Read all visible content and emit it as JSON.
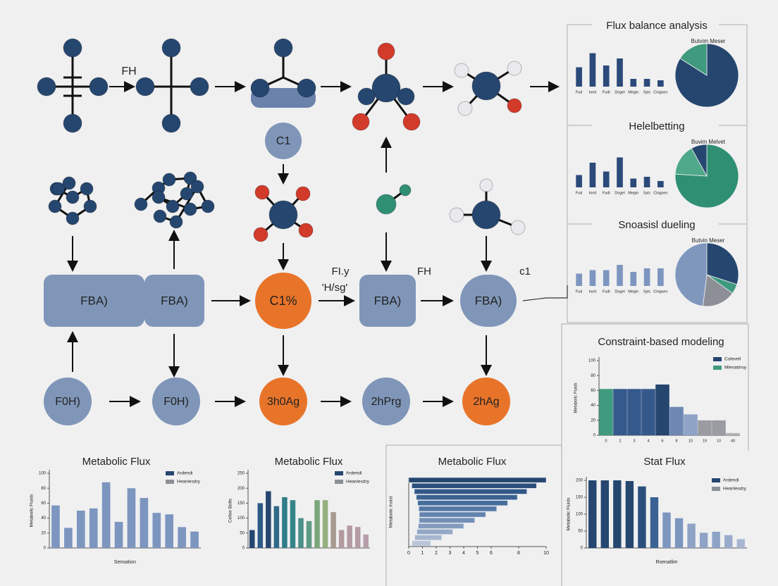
{
  "top_labels": [
    "FH",
    "C1"
  ],
  "nodes": {
    "fba": [
      "FBA)",
      "FBA)",
      "FBA)",
      "FBA)"
    ],
    "center": "C1%",
    "bottom": [
      "F0H)",
      "F0H)",
      "3h0Ag",
      "2hPrg",
      "2hAg"
    ]
  },
  "edge_labels": [
    "FI.y",
    "'H/sg'",
    "FH",
    "c1"
  ],
  "panels": [
    {
      "title": "Flux balance analysis",
      "legend": "Butvim Meser",
      "ylim": [
        0,
        100
      ],
      "categories": [
        "Fud",
        "Ionit",
        "Fudl",
        "Dogel",
        "Megin",
        "Sylc",
        "Cingsen"
      ],
      "values": [
        55,
        95,
        60,
        80,
        22,
        22,
        18
      ],
      "color": "#2b4a7a",
      "pie": [
        84,
        16
      ],
      "pie_colors": [
        "#25466f",
        "#3f9a7e"
      ]
    },
    {
      "title": "Helelbetting",
      "legend": "Buvim Melvet",
      "ylim": [
        0,
        100
      ],
      "categories": [
        "Fud",
        "Ionit",
        "Fudl",
        "Dogel",
        "Megin",
        "Sylc",
        "Cingsen"
      ],
      "values": [
        35,
        70,
        45,
        85,
        25,
        30,
        18
      ],
      "color": "#2b4a7a",
      "pie": [
        76,
        16,
        8
      ],
      "pie_colors": [
        "#2f8f73",
        "#4fa88a",
        "#25466f"
      ]
    },
    {
      "title": "Snoasisl dueling",
      "legend": "Butvin Meser",
      "ylim": [
        0,
        100
      ],
      "categories": [
        "Fud",
        "Ionit",
        "Fudl",
        "Dogel",
        "Megin",
        "Sylc",
        "Cingsen"
      ],
      "values": [
        35,
        45,
        45,
        60,
        40,
        50,
        50
      ],
      "color": "#7d96bf",
      "pie": [
        30,
        5,
        17,
        48
      ],
      "pie_colors": [
        "#25466f",
        "#3f9a7e",
        "#8c8f96",
        "#7f97bd"
      ]
    }
  ],
  "constraint_chart": {
    "title": "Constraint-based modeling",
    "ylabel": "Metabolic Fluids",
    "legend": [
      "Colevell",
      "Mlenatinsy"
    ],
    "legend_colors": [
      "#25466f",
      "#3f9a7e"
    ],
    "categories": [
      "0",
      "2",
      "3",
      "4",
      "6",
      "8",
      "10",
      "19",
      "10",
      "40"
    ],
    "values": [
      62,
      62,
      62,
      62,
      68,
      38,
      28,
      20,
      20,
      3
    ],
    "colors": [
      "#3f9a7e",
      "#36598c",
      "#36598c",
      "#36598c",
      "#25466f",
      "#6e88b3",
      "#8ea3c6",
      "#9a9ca2",
      "#9a9ca2",
      "#b0b2b6"
    ],
    "ylim": [
      0,
      100
    ],
    "yticks": [
      0,
      20,
      40,
      60,
      80,
      100
    ]
  },
  "bottom_charts": [
    {
      "title": "Metabolic Flux",
      "ylabel": "Metabolic Fluids",
      "xlabel": "Sensation",
      "legend": [
        "Ardendi",
        "Heanlesdry"
      ],
      "legend_colors": [
        "#25466f",
        "#8c8f96"
      ],
      "values": [
        57,
        27,
        50,
        53,
        88,
        35,
        80,
        67,
        47,
        45,
        28,
        22
      ],
      "colors": [
        "#7d96bf"
      ],
      "ylim": [
        0,
        100
      ],
      "yticks": [
        0,
        20,
        40,
        60,
        80,
        100
      ]
    },
    {
      "title": "Metabolic Flux",
      "ylabel": "Cellse Bolts",
      "legend": [
        "Ardendi",
        "Heanlesdry"
      ],
      "legend_colors": [
        "#25466f",
        "#8c8f96"
      ],
      "values": [
        60,
        150,
        190,
        140,
        170,
        160,
        100,
        90,
        160,
        160,
        120,
        60,
        75,
        70,
        45
      ],
      "colors": [
        "#25466f",
        "#2c5a86",
        "#25466f",
        "#2f6a8a",
        "#2f7d89",
        "#35858a",
        "#4a8f88",
        "#5d9b83",
        "#7aa77a",
        "#94b07e",
        "#a89a8f",
        "#b39a9e",
        "#b49aa3",
        "#b39aa4",
        "#b69ea8"
      ],
      "ylim": [
        0,
        250
      ],
      "yticks": [
        0,
        50,
        100,
        150,
        200,
        250
      ]
    },
    {
      "title": "Metabolic Flux",
      "ylabel": "Metabolic Insist",
      "orientation": "horizontal",
      "values": [
        10,
        9.3,
        8.6,
        7.9,
        7.2,
        6.4,
        5.6,
        4.8,
        4,
        3.2,
        2.4,
        1.6
      ],
      "colors": [
        "#25466f",
        "#2b4f7c",
        "#315887",
        "#3a6292",
        "#466d9b",
        "#5478a4",
        "#6383ad",
        "#738fb5",
        "#839bbd",
        "#94a8c6",
        "#a6b6cf",
        "#b9c6d9"
      ],
      "xlim": [
        0,
        10
      ],
      "xticks": [
        0,
        1,
        2,
        3,
        4,
        5,
        6,
        8,
        10
      ]
    },
    {
      "title": "Stat Flux",
      "ylabel": "Metabolic Fluids",
      "xlabel": "Rsenatlim",
      "legend": [
        "Ardendi",
        "Heanlesdry"
      ],
      "legend_colors": [
        "#25466f",
        "#8c8f96"
      ],
      "values": [
        200,
        200,
        200,
        198,
        182,
        150,
        105,
        88,
        72,
        45,
        48,
        38,
        26
      ],
      "colors": [
        "#25466f",
        "#25466f",
        "#25466f",
        "#25466f",
        "#2b4f7c",
        "#3a6292",
        "#7d96bf",
        "#7d96bf",
        "#8ea3c6",
        "#8ea3c6",
        "#8ea3c6",
        "#9aaccb",
        "#a6b6cf"
      ],
      "ylim": [
        0,
        200
      ],
      "yticks": [
        0,
        50,
        100,
        150,
        200
      ]
    }
  ]
}
